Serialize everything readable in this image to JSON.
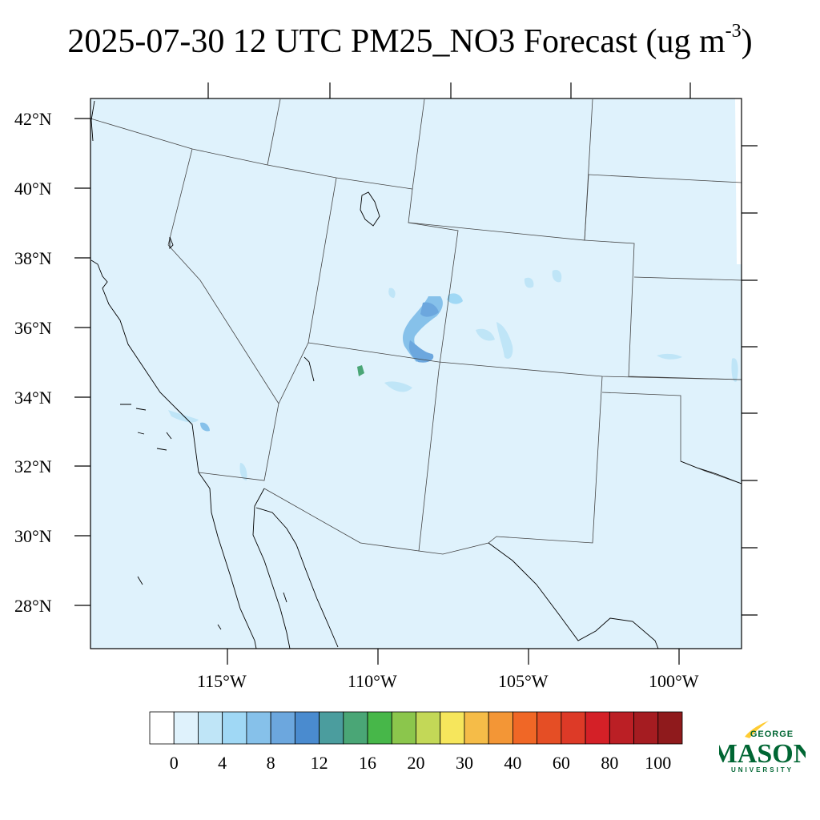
{
  "title": {
    "text": "2025-07-30 12 UTC PM25_NO3 Forecast (ug m",
    "exponent": "-3",
    "close": ")"
  },
  "map": {
    "lon_range": [
      -119.5,
      -97.3
    ],
    "lat_range": [
      26.8,
      42.6
    ],
    "fill_color": "#dff2fc",
    "lat_labels": [
      "42°N",
      "40°N",
      "38°N",
      "36°N",
      "34°N",
      "32°N",
      "30°N",
      "28°N"
    ],
    "lon_labels": [
      "115°W",
      "110°W",
      "105°W",
      "100°W"
    ]
  },
  "colorbar": {
    "colors": [
      "#ffffff",
      "#dff2fc",
      "#bfe5f7",
      "#a0d8f5",
      "#86c1ea",
      "#6ca7de",
      "#4a8bcf",
      "#4b9d9e",
      "#4aa676",
      "#47b749",
      "#8bc64c",
      "#c3d857",
      "#f6e65c",
      "#f5bc48",
      "#f39636",
      "#f06726",
      "#e54e25",
      "#dd3a27",
      "#d42027",
      "#bb1f25",
      "#a51c21",
      "#8f1a1c"
    ],
    "labels": [
      "0",
      "4",
      "8",
      "12",
      "16",
      "20",
      "30",
      "40",
      "60",
      "80",
      "100"
    ]
  },
  "logo": {
    "line1": "GEORGE",
    "line2": "MASON",
    "line3": "UNIVERSITY",
    "green": "#006633",
    "gold": "#ffcc33"
  }
}
